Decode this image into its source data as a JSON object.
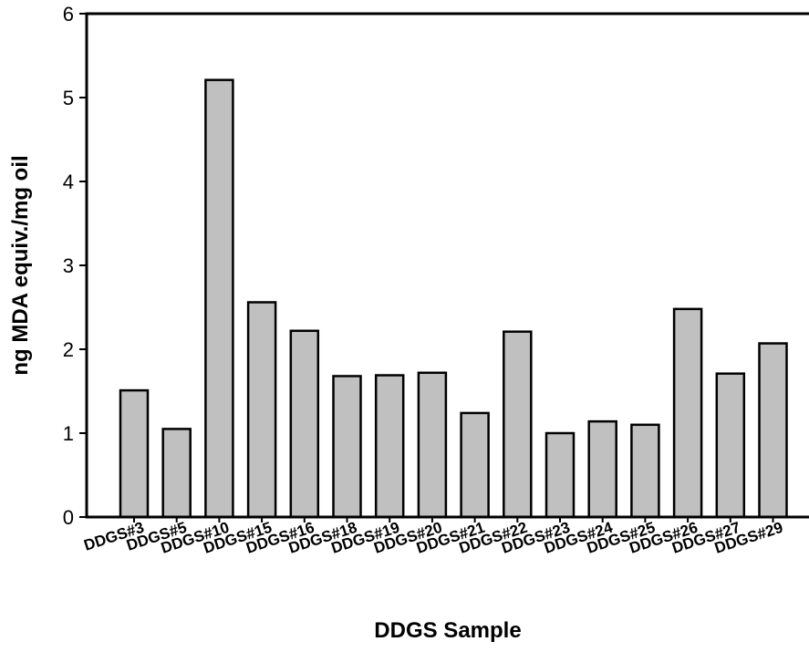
{
  "chart_data": {
    "type": "bar",
    "title": "",
    "xlabel": "DDGS Sample",
    "ylabel": "ng MDA equiv./mg oil",
    "ylim": [
      0,
      6
    ],
    "yticks": [
      "0",
      "1",
      "2",
      "3",
      "4",
      "5",
      "6"
    ],
    "grid": false,
    "bar_color": "#c0c0c0",
    "categories": [
      "DDGS#3",
      "DDGS#5",
      "DDGS#10",
      "DDGS#15",
      "DDGS#16",
      "DDGS#18",
      "DDGS#19",
      "DDGS#20",
      "DDGS#21",
      "DDGS#22",
      "DDGS#23",
      "DDGS#24",
      "DDGS#25",
      "DDGS#26",
      "DDGS#27",
      "DDGS#29"
    ],
    "values": [
      1.51,
      1.05,
      5.21,
      2.56,
      2.22,
      1.68,
      1.69,
      1.72,
      1.24,
      2.21,
      1.0,
      1.14,
      1.1,
      2.48,
      1.71,
      2.07
    ]
  }
}
